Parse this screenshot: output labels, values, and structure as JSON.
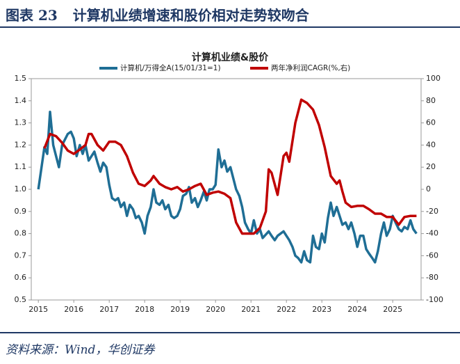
{
  "header": {
    "figure": "图表 23",
    "title": "计算机业绩增速和股价相对走势较吻合"
  },
  "source": "资料来源：Wind，华创证券",
  "chart_data": {
    "type": "line",
    "title": "计算机业绩&股价",
    "xlim": [
      2014.8,
      2025.8
    ],
    "xticks": [
      2015,
      2016,
      2017,
      2018,
      2019,
      2020,
      2021,
      2022,
      2023,
      2024,
      2025
    ],
    "ylim": [
      0.5,
      1.5
    ],
    "yticks": [
      0.5,
      0.6,
      0.7,
      0.8,
      0.9,
      {
        "value": 1,
        "label": "1.0"
      },
      1.1,
      1.2,
      1.3,
      1.4,
      1.5
    ],
    "y2lim": [
      -100,
      100
    ],
    "y2ticks": [
      -100,
      -80,
      -60,
      -40,
      -20,
      0,
      20,
      40,
      60,
      80,
      100
    ],
    "series": [
      {
        "name": "计算机/万得全A(15/01/31=1)",
        "color": "#1f6e95",
        "x": [
          2015.0,
          2015.17,
          2015.25,
          2015.33,
          2015.42,
          2015.5,
          2015.58,
          2015.67,
          2015.83,
          2015.92,
          2016.0,
          2016.08,
          2016.17,
          2016.25,
          2016.33,
          2016.42,
          2016.58,
          2016.67,
          2016.75,
          2016.83,
          2016.92,
          2017.0,
          2017.08,
          2017.17,
          2017.25,
          2017.33,
          2017.42,
          2017.5,
          2017.58,
          2017.67,
          2017.75,
          2017.83,
          2017.92,
          2018.0,
          2018.08,
          2018.17,
          2018.25,
          2018.33,
          2018.42,
          2018.5,
          2018.58,
          2018.67,
          2018.75,
          2018.83,
          2018.92,
          2019.0,
          2019.08,
          2019.17,
          2019.25,
          2019.33,
          2019.42,
          2019.5,
          2019.58,
          2019.67,
          2019.75,
          2019.83,
          2019.92,
          2020.0,
          2020.08,
          2020.17,
          2020.25,
          2020.33,
          2020.42,
          2020.5,
          2020.58,
          2020.67,
          2020.75,
          2020.83,
          2020.92,
          2021.0,
          2021.08,
          2021.17,
          2021.25,
          2021.33,
          2021.5,
          2021.58,
          2021.67,
          2021.75,
          2021.92,
          2022.0,
          2022.08,
          2022.17,
          2022.25,
          2022.33,
          2022.42,
          2022.5,
          2022.58,
          2022.67,
          2022.75,
          2022.83,
          2022.92,
          2023.0,
          2023.08,
          2023.17,
          2023.25,
          2023.33,
          2023.42,
          2023.5,
          2023.58,
          2023.67,
          2023.75,
          2023.83,
          2023.92,
          2024.0,
          2024.08,
          2024.17,
          2024.25,
          2024.33,
          2024.42,
          2024.5,
          2024.58,
          2024.67,
          2024.75,
          2024.83,
          2024.92,
          2025.0,
          2025.08,
          2025.17,
          2025.25,
          2025.33,
          2025.42,
          2025.5,
          2025.58,
          2025.67
        ],
        "values": [
          1.0,
          1.19,
          1.16,
          1.35,
          1.2,
          1.15,
          1.1,
          1.2,
          1.25,
          1.26,
          1.23,
          1.15,
          1.2,
          1.16,
          1.2,
          1.13,
          1.17,
          1.12,
          1.08,
          1.12,
          1.1,
          1.02,
          0.96,
          0.95,
          0.96,
          0.92,
          0.94,
          0.88,
          0.93,
          0.91,
          0.87,
          0.88,
          0.85,
          0.8,
          0.88,
          0.92,
          1.0,
          0.94,
          0.93,
          0.95,
          0.91,
          0.93,
          0.88,
          0.87,
          0.88,
          0.91,
          0.97,
          0.98,
          1.01,
          0.94,
          0.96,
          0.92,
          0.95,
          0.99,
          0.95,
          1.0,
          1.0,
          1.02,
          1.18,
          1.1,
          1.13,
          1.08,
          1.1,
          1.05,
          1.0,
          0.97,
          0.92,
          0.85,
          0.82,
          0.8,
          0.86,
          0.8,
          0.82,
          0.78,
          0.81,
          0.79,
          0.77,
          0.79,
          0.81,
          0.79,
          0.77,
          0.74,
          0.7,
          0.69,
          0.67,
          0.72,
          0.68,
          0.67,
          0.79,
          0.74,
          0.73,
          0.8,
          0.76,
          0.87,
          0.94,
          0.88,
          0.92,
          0.88,
          0.84,
          0.85,
          0.82,
          0.85,
          0.8,
          0.74,
          0.79,
          0.79,
          0.73,
          0.71,
          0.69,
          0.67,
          0.72,
          0.8,
          0.85,
          0.79,
          0.82,
          0.88,
          0.85,
          0.82,
          0.81,
          0.83,
          0.82,
          0.86,
          0.82,
          0.8
        ]
      },
      {
        "name": "两年净利润CAGR(%,右)",
        "color": "#c00000",
        "axis": "y2",
        "x": [
          2015.17,
          2015.33,
          2015.5,
          2015.67,
          2015.83,
          2016.0,
          2016.17,
          2016.33,
          2016.42,
          2016.5,
          2016.67,
          2016.83,
          2017.0,
          2017.17,
          2017.33,
          2017.5,
          2017.67,
          2017.83,
          2018.0,
          2018.17,
          2018.25,
          2018.42,
          2018.58,
          2018.75,
          2018.92,
          2019.08,
          2019.25,
          2019.42,
          2019.58,
          2019.75,
          2019.92,
          2020.08,
          2020.25,
          2020.42,
          2020.58,
          2020.75,
          2020.92,
          2021.08,
          2021.25,
          2021.42,
          2021.5,
          2021.58,
          2021.75,
          2021.92,
          2022.0,
          2022.08,
          2022.25,
          2022.42,
          2022.58,
          2022.75,
          2022.92,
          2023.08,
          2023.25,
          2023.42,
          2023.5,
          2023.58,
          2023.67,
          2023.83,
          2024.0,
          2024.17,
          2024.33,
          2024.5,
          2024.67,
          2024.83,
          2025.0,
          2025.17,
          2025.33,
          2025.5,
          2025.67
        ],
        "values": [
          37,
          50,
          48,
          42,
          35,
          32,
          36,
          40,
          50,
          50,
          40,
          35,
          43,
          43,
          40,
          30,
          15,
          5,
          3,
          8,
          12,
          5,
          2,
          0,
          2,
          -2,
          0,
          3,
          5,
          -5,
          -3,
          -2,
          -4,
          -8,
          -30,
          -40,
          -40,
          -40,
          -35,
          -20,
          18,
          15,
          -5,
          30,
          33,
          25,
          60,
          81,
          78,
          72,
          58,
          38,
          12,
          5,
          8,
          -2,
          -12,
          -16,
          -15,
          -15,
          -18,
          -22,
          -22,
          -25,
          -25,
          -32,
          -25,
          -24,
          -24
        ]
      }
    ]
  }
}
